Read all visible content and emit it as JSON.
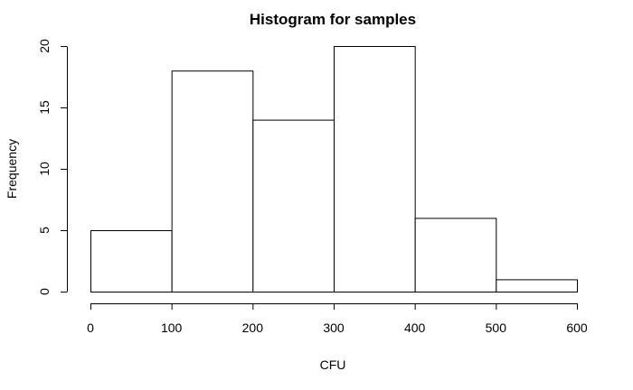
{
  "chart_data": {
    "type": "bar",
    "title": "Histogram for samples",
    "xlabel": "CFU",
    "ylabel": "Frequency",
    "bins": [
      {
        "start": 0,
        "end": 100,
        "count": 5
      },
      {
        "start": 100,
        "end": 200,
        "count": 18
      },
      {
        "start": 200,
        "end": 300,
        "count": 14
      },
      {
        "start": 300,
        "end": 400,
        "count": 20
      },
      {
        "start": 400,
        "end": 500,
        "count": 6
      },
      {
        "start": 500,
        "end": 600,
        "count": 1
      }
    ],
    "xlim": [
      0,
      600
    ],
    "ylim": [
      0,
      20
    ],
    "xticks": [
      0,
      100,
      200,
      300,
      400,
      500,
      600
    ],
    "yticks": [
      0,
      5,
      10,
      15,
      20
    ],
    "grid": false,
    "colors": {
      "bar_fill": "#ffffff",
      "bar_stroke": "#000000"
    }
  }
}
